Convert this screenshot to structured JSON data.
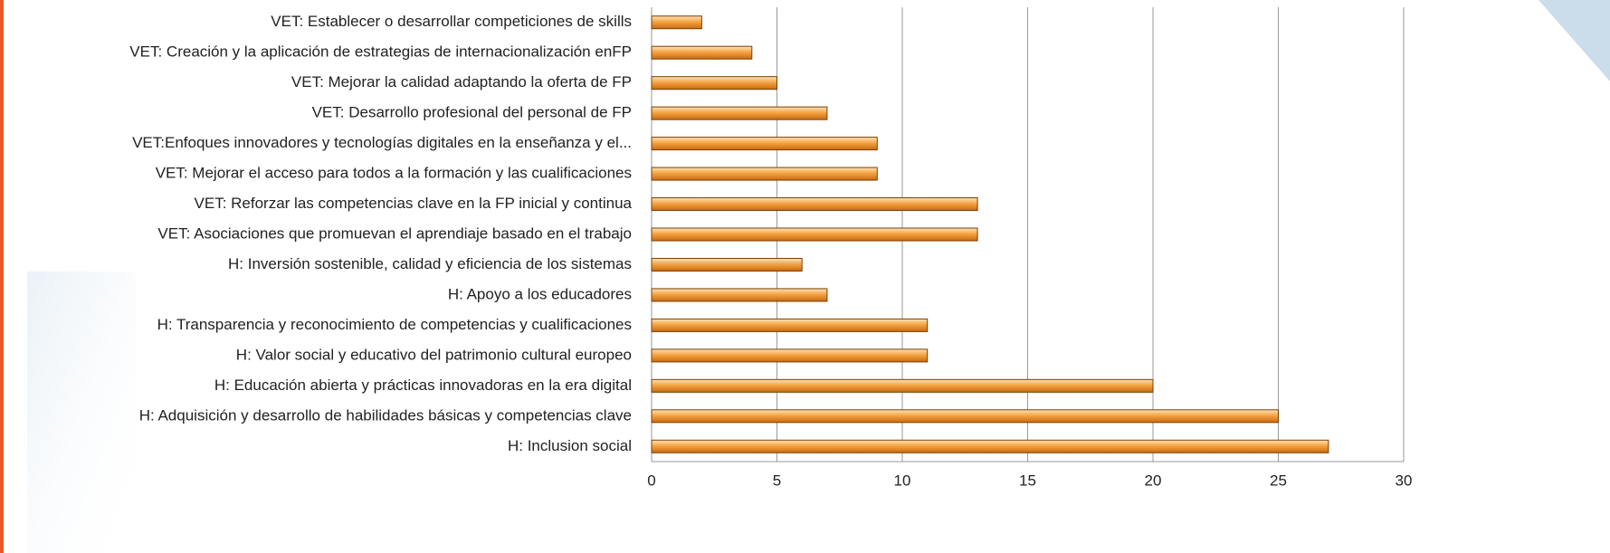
{
  "chart_data": {
    "type": "bar",
    "orientation": "horizontal",
    "categories": [
      "VET: Establecer o desarrollar competiciones de skills",
      "VET: Creación y la aplicación de estrategias de internacionalización enFP",
      "VET: Mejorar la calidad adaptando la oferta de FP",
      "VET: Desarrollo profesional del personal de FP",
      "VET:Enfoques innovadores y tecnologías digitales en la enseñanza y el...",
      "VET: Mejorar el acceso para todos a la formación y las cualificaciones",
      "VET: Reforzar las competencias clave en la FP inicial y continua",
      "VET: Asociaciones que promuevan el aprendiaje basado en el trabajo",
      "H: Inversión sostenible, calidad y eficiencia de los sistemas",
      "H: Apoyo a los educadores",
      "H: Transparencia y reconocimiento de competencias y cualificaciones",
      "H: Valor social y educativo del patrimonio cultural europeo",
      "H: Educación abierta y prácticas innovadoras en la era digital",
      "H: Adquisición y desarrollo de habilidades básicas y competencias clave",
      "H: Inclusion social"
    ],
    "values": [
      2,
      4,
      5,
      7,
      9,
      9,
      13,
      13,
      6,
      7,
      11,
      11,
      20,
      25,
      27
    ],
    "color": "#f0962a",
    "xlim": [
      0,
      30
    ],
    "xticks": [
      0,
      5,
      10,
      15,
      20,
      25,
      30
    ],
    "grid": true
  }
}
